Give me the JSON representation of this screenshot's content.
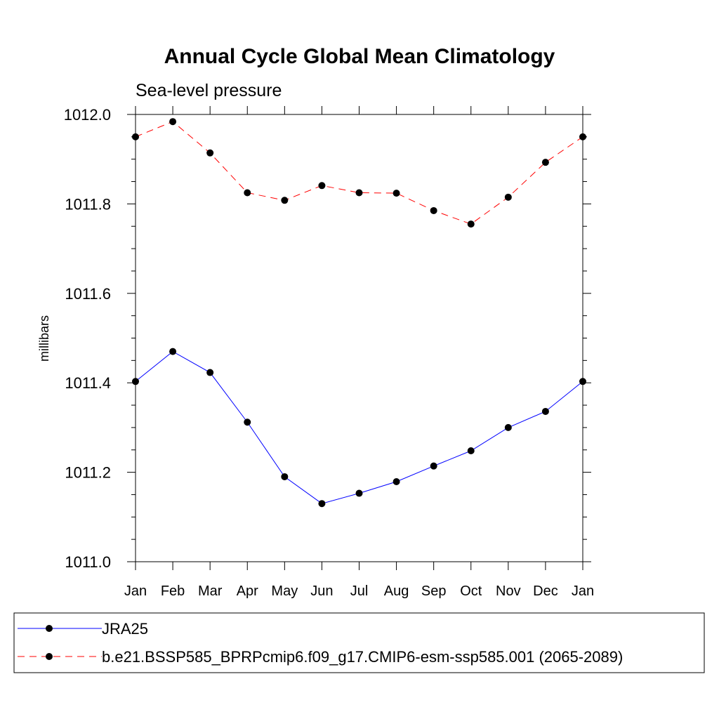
{
  "chart_data": {
    "type": "line",
    "title": "Annual Cycle Global Mean Climatology",
    "subtitle": "Sea-level pressure",
    "xlabel": "",
    "ylabel": "millibars",
    "categories": [
      "Jan",
      "Feb",
      "Mar",
      "Apr",
      "May",
      "Jun",
      "Jul",
      "Aug",
      "Sep",
      "Oct",
      "Nov",
      "Dec",
      "Jan"
    ],
    "ylim": [
      1011.0,
      1012.0
    ],
    "yticks": [
      1011.0,
      1011.2,
      1011.4,
      1011.6,
      1011.8,
      1012.0
    ],
    "ytick_labels": [
      "1011.0",
      "1011.2",
      "1011.4",
      "1011.6",
      "1011.8",
      "1012.0"
    ],
    "yminor_step": 0.05,
    "grid": false,
    "legend_position": "bottom",
    "series": [
      {
        "name": "JRA25",
        "color": "#0000ff",
        "dash": "solid",
        "marker": "circle",
        "values": [
          1011.403,
          1011.47,
          1011.423,
          1011.312,
          1011.19,
          1011.13,
          1011.153,
          1011.179,
          1011.214,
          1011.248,
          1011.3,
          1011.336,
          1011.403
        ]
      },
      {
        "name": "b.e21.BSSP585_BPRPcmip6.f09_g17.CMIP6-esm-ssp585.001 (2065-2089)",
        "color": "#ff0000",
        "dash": "dashed",
        "marker": "circle",
        "values": [
          1011.95,
          1011.984,
          1011.914,
          1011.825,
          1011.808,
          1011.841,
          1011.825,
          1011.824,
          1011.785,
          1011.755,
          1011.815,
          1011.893,
          1011.95
        ]
      }
    ]
  }
}
